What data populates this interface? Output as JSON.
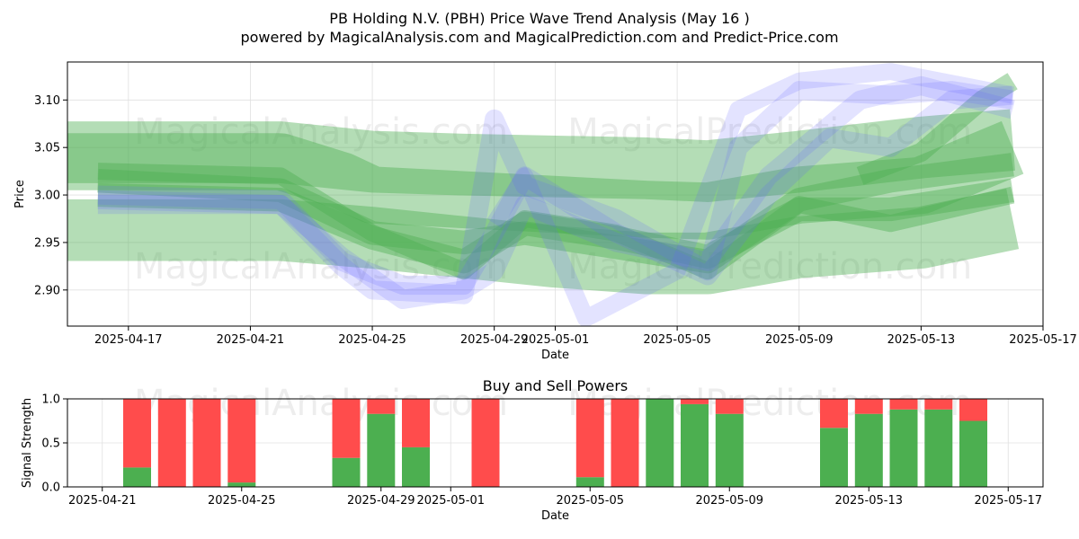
{
  "title": "PB Holding N.V. (PBH) Price Wave Trend Analysis (May 16 )",
  "subtitle": "powered by MagicalAnalysis.com and MagicalPrediction.com and Predict-Price.com",
  "watermarks": [
    "MagicalAnalysis.com",
    "MagicalPrediction.com"
  ],
  "colors": {
    "green_band": "#4caf50",
    "blue_band": "#6666ff",
    "buy": "#4caf50",
    "sell": "#ff4c4c",
    "grid": "#e0e0e0"
  },
  "chart_data": [
    {
      "type": "area",
      "title": "",
      "xlabel": "Date",
      "ylabel": "Price",
      "xlim": [
        "2025-04-15",
        "2025-05-17"
      ],
      "ylim": [
        2.862,
        3.14
      ],
      "x_ticks": [
        "2025-04-17",
        "2025-04-21",
        "2025-04-25",
        "2025-04-29",
        "2025-05-01",
        "2025-05-05",
        "2025-05-09",
        "2025-05-13",
        "2025-05-17"
      ],
      "y_ticks": [
        "2.90",
        "2.95",
        "3.00",
        "3.05",
        "3.10"
      ],
      "grid": true,
      "series": [
        {
          "color": "green",
          "points": [
            [
              "2025-04-15",
              3.045
            ],
            [
              "2025-04-22",
              3.045
            ],
            [
              "2025-04-25",
              3.035
            ],
            [
              "2025-04-28",
              3.032
            ],
            [
              "2025-05-01",
              3.03
            ],
            [
              "2025-05-04",
              3.028
            ],
            [
              "2025-05-06",
              3.025
            ],
            [
              "2025-05-09",
              3.035
            ],
            [
              "2025-05-13",
              3.05
            ],
            [
              "2025-05-16",
              3.058
            ]
          ],
          "width": 0.065
        },
        {
          "color": "green",
          "points": [
            [
              "2025-04-15",
              3.035
            ],
            [
              "2025-04-22",
              3.035
            ],
            [
              "2025-04-24",
              3.015
            ],
            [
              "2025-04-25",
              3.0
            ],
            [
              "2025-04-28",
              2.995
            ],
            [
              "2025-05-01",
              2.99
            ],
            [
              "2025-05-04",
              2.985
            ],
            [
              "2025-05-06",
              2.983
            ],
            [
              "2025-05-09",
              3.0
            ],
            [
              "2025-05-13",
              3.01
            ],
            [
              "2025-05-16",
              3.05
            ]
          ],
          "width": 0.06
        },
        {
          "color": "green",
          "points": [
            [
              "2025-04-15",
              2.963
            ],
            [
              "2025-04-22",
              2.963
            ],
            [
              "2025-04-25",
              2.955
            ],
            [
              "2025-04-28",
              2.945
            ],
            [
              "2025-05-01",
              2.935
            ],
            [
              "2025-05-04",
              2.928
            ],
            [
              "2025-05-06",
              2.928
            ],
            [
              "2025-05-09",
              2.945
            ],
            [
              "2025-05-13",
              2.955
            ],
            [
              "2025-05-16",
              2.975
            ]
          ],
          "width": 0.065
        },
        {
          "color": "green",
          "points": [
            [
              "2025-04-16",
              3.015
            ],
            [
              "2025-04-22",
              3.005
            ],
            [
              "2025-04-25",
              2.96
            ],
            [
              "2025-04-28",
              2.95
            ],
            [
              "2025-04-30",
              2.96
            ],
            [
              "2025-05-03",
              2.945
            ],
            [
              "2025-05-06",
              2.93
            ],
            [
              "2025-05-09",
              2.995
            ],
            [
              "2025-05-12",
              3.015
            ],
            [
              "2025-05-16",
              3.032
            ]
          ],
          "width": 0.025
        },
        {
          "color": "green",
          "points": [
            [
              "2025-04-16",
              3.0
            ],
            [
              "2025-04-22",
              2.995
            ],
            [
              "2025-04-25",
              2.955
            ],
            [
              "2025-04-28",
              2.93
            ],
            [
              "2025-04-30",
              2.97
            ],
            [
              "2025-05-03",
              2.955
            ],
            [
              "2025-05-06",
              2.935
            ],
            [
              "2025-05-09",
              2.985
            ],
            [
              "2025-05-12",
              2.985
            ],
            [
              "2025-05-16",
              3.005
            ]
          ],
          "width": 0.025
        },
        {
          "color": "green",
          "points": [
            [
              "2025-04-16",
              3.025
            ],
            [
              "2025-04-22",
              3.02
            ],
            [
              "2025-04-25",
              2.96
            ],
            [
              "2025-04-28",
              2.92
            ],
            [
              "2025-04-30",
              2.975
            ],
            [
              "2025-05-03",
              2.96
            ],
            [
              "2025-05-06",
              2.92
            ],
            [
              "2025-05-09",
              2.99
            ],
            [
              "2025-05-12",
              2.97
            ],
            [
              "2025-05-16",
              3.0
            ]
          ],
          "width": 0.018
        },
        {
          "color": "green",
          "points": [
            [
              "2025-05-11",
              3.02
            ],
            [
              "2025-05-13",
              3.045
            ],
            [
              "2025-05-15",
              3.1
            ],
            [
              "2025-05-16",
              3.12
            ]
          ],
          "width": 0.02
        },
        {
          "color": "blue",
          "points": [
            [
              "2025-04-16",
              2.995
            ],
            [
              "2025-04-22",
              2.99
            ],
            [
              "2025-04-24",
              2.925
            ],
            [
              "2025-04-25",
              2.9
            ],
            [
              "2025-04-28",
              2.895
            ],
            [
              "2025-04-29",
              3.08
            ],
            [
              "2025-04-30",
              3.01
            ],
            [
              "2025-05-03",
              2.975
            ],
            [
              "2025-05-06",
              2.92
            ],
            [
              "2025-05-07",
              3.05
            ],
            [
              "2025-05-09",
              3.11
            ],
            [
              "2025-05-12",
              3.105
            ],
            [
              "2025-05-14",
              3.11
            ],
            [
              "2025-05-16",
              3.1
            ]
          ],
          "width": 0.02
        },
        {
          "color": "blue",
          "points": [
            [
              "2025-04-16",
              3.0
            ],
            [
              "2025-04-22",
              2.995
            ],
            [
              "2025-04-24",
              2.93
            ],
            [
              "2025-04-26",
              2.905
            ],
            [
              "2025-04-28",
              2.905
            ],
            [
              "2025-04-29",
              2.96
            ],
            [
              "2025-04-30",
              3.02
            ],
            [
              "2025-05-03",
              2.96
            ],
            [
              "2025-05-06",
              2.915
            ],
            [
              "2025-05-08",
              3.0
            ],
            [
              "2025-05-10",
              3.06
            ],
            [
              "2025-05-12",
              3.05
            ],
            [
              "2025-05-14",
              3.1
            ],
            [
              "2025-05-16",
              3.105
            ]
          ],
          "width": 0.02
        },
        {
          "color": "blue",
          "points": [
            [
              "2025-04-16",
              2.99
            ],
            [
              "2025-04-22",
              2.99
            ],
            [
              "2025-04-24",
              2.935
            ],
            [
              "2025-04-26",
              2.89
            ],
            [
              "2025-04-28",
              2.9
            ],
            [
              "2025-04-29",
              2.92
            ],
            [
              "2025-04-30",
              2.99
            ],
            [
              "2025-05-03",
              2.95
            ],
            [
              "2025-05-06",
              2.93
            ],
            [
              "2025-05-08",
              3.02
            ],
            [
              "2025-05-11",
              3.1
            ],
            [
              "2025-05-13",
              3.115
            ],
            [
              "2025-05-16",
              3.09
            ]
          ],
          "width": 0.02
        },
        {
          "color": "blue",
          "points": [
            [
              "2025-04-29",
              2.97
            ],
            [
              "2025-04-30",
              3.02
            ],
            [
              "2025-05-02",
              2.87
            ],
            [
              "2025-05-05",
              2.92
            ],
            [
              "2025-05-07",
              3.09
            ],
            [
              "2025-05-09",
              3.12
            ],
            [
              "2025-05-12",
              3.13
            ],
            [
              "2025-05-16",
              3.105
            ]
          ],
          "width": 0.018
        }
      ]
    },
    {
      "type": "bar",
      "title": "Buy and Sell Powers",
      "xlabel": "Date",
      "ylabel": "Signal Strength",
      "xlim": [
        "2025-04-20",
        "2025-05-18"
      ],
      "ylim": [
        0,
        1
      ],
      "x_ticks": [
        "2025-04-21",
        "2025-04-25",
        "2025-04-29",
        "2025-05-01",
        "2025-05-05",
        "2025-05-09",
        "2025-05-13",
        "2025-05-17"
      ],
      "y_ticks": [
        "0.0",
        "0.5",
        "1.0"
      ],
      "grid": true,
      "categories": [
        "2025-04-22",
        "2025-04-23",
        "2025-04-24",
        "2025-04-25",
        "2025-04-28",
        "2025-04-29",
        "2025-04-30",
        "2025-05-02",
        "2025-05-05",
        "2025-05-06",
        "2025-05-07",
        "2025-05-08",
        "2025-05-09",
        "2025-05-12",
        "2025-05-13",
        "2025-05-14",
        "2025-05-15",
        "2025-05-16"
      ],
      "series": [
        {
          "name": "Buy",
          "values": [
            0.22,
            0.0,
            0.0,
            0.05,
            0.33,
            0.83,
            0.45,
            0.0,
            0.11,
            0.0,
            1.0,
            0.94,
            0.83,
            0.67,
            0.83,
            0.88,
            0.88,
            0.75
          ]
        },
        {
          "name": "Sell",
          "values": [
            0.78,
            1.0,
            1.0,
            0.95,
            0.67,
            0.17,
            0.55,
            1.0,
            0.89,
            1.0,
            0.0,
            0.06,
            0.17,
            0.33,
            0.17,
            0.12,
            0.12,
            0.25
          ]
        }
      ]
    }
  ]
}
